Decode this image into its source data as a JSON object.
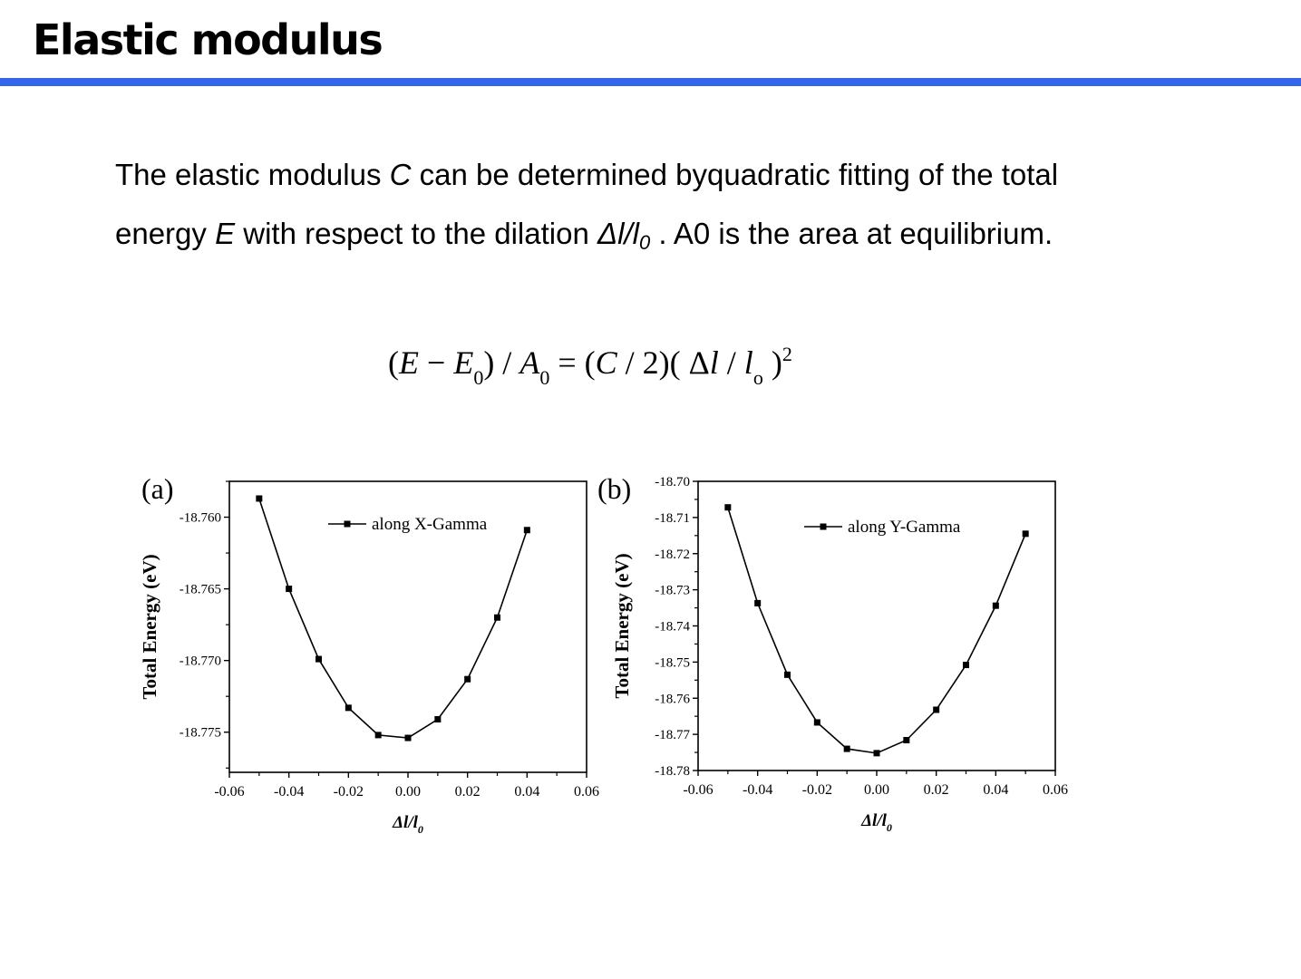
{
  "slide": {
    "title": "Elastic modulus",
    "paragraph": {
      "p1": "The elastic modulus ",
      "C": "C",
      "p2": " can be determined byquadratic fitting of the total energy ",
      "E": "E",
      "p3": " with respect to the dilation ",
      "dl": "Δl/l",
      "dl_sub": "0",
      "p4": " . A0 is the area at equilibrium."
    },
    "equation": {
      "t1": "(",
      "E": "E",
      "t2": " − ",
      "E0": "E",
      "E0_sub": "0",
      "t3": ") / ",
      "A": "A",
      "A_sub": "0",
      "t4": " = (",
      "C": "C",
      "t5": " / 2)( Δ",
      "l": "l",
      "t6": " / ",
      "lo": "l",
      "lo_sub": "o",
      "t7": " )",
      "sup": "2"
    }
  },
  "chart_data": [
    {
      "type": "line",
      "panel_label": "(a)",
      "ylabel": "Total Energy (eV)",
      "xlabel": "Δl/l",
      "xlabel_sub": "0",
      "xlim": [
        -0.06,
        0.06
      ],
      "ylim": [
        -18.7778,
        -18.7575
      ],
      "x_ticks": [
        -0.06,
        -0.04,
        -0.02,
        0.0,
        0.02,
        0.04,
        0.06
      ],
      "x_tick_labels": [
        "-0.06",
        "-0.04",
        "-0.02",
        "0.00",
        "0.02",
        "0.04",
        "0.06"
      ],
      "y_ticks": [
        -18.76,
        -18.765,
        -18.77,
        -18.775
      ],
      "y_tick_labels": [
        "-18.760",
        "-18.765",
        "-18.770",
        "-18.775"
      ],
      "legend_position": "top-right",
      "series": [
        {
          "name": "along X-Gamma",
          "x": [
            -0.05,
            -0.04,
            -0.03,
            -0.02,
            -0.01,
            0.0,
            0.01,
            0.02,
            0.03,
            0.04
          ],
          "values": [
            -18.7587,
            -18.765,
            -18.7699,
            -18.7733,
            -18.7752,
            -18.7754,
            -18.7741,
            -18.7713,
            -18.767,
            -18.7609
          ]
        }
      ]
    },
    {
      "type": "line",
      "panel_label": "(b)",
      "ylabel": "Total Energy (eV)",
      "xlabel": "Δl/l",
      "xlabel_sub": "0",
      "xlim": [
        -0.06,
        0.06
      ],
      "ylim": [
        -18.78,
        -18.7
      ],
      "x_ticks": [
        -0.06,
        -0.04,
        -0.02,
        0.0,
        0.02,
        0.04,
        0.06
      ],
      "x_tick_labels": [
        "-0.06",
        "-0.04",
        "-0.02",
        "0.00",
        "0.02",
        "0.04",
        "0.06"
      ],
      "y_ticks": [
        -18.7,
        -18.71,
        -18.72,
        -18.73,
        -18.74,
        -18.75,
        -18.76,
        -18.77,
        -18.78
      ],
      "y_tick_labels": [
        "-18.70",
        "-18.71",
        "-18.72",
        "-18.73",
        "-18.74",
        "-18.75",
        "-18.76",
        "-18.77",
        "-18.78"
      ],
      "legend_position": "top-right",
      "series": [
        {
          "name": "along Y-Gamma",
          "x": [
            -0.05,
            -0.04,
            -0.03,
            -0.02,
            -0.01,
            0.0,
            0.01,
            0.02,
            0.03,
            0.04,
            0.05
          ],
          "values": [
            -18.7072,
            -18.7337,
            -18.7535,
            -18.7667,
            -18.774,
            -18.7752,
            -18.7716,
            -18.7632,
            -18.7508,
            -18.7344,
            -18.7145
          ]
        }
      ]
    }
  ]
}
